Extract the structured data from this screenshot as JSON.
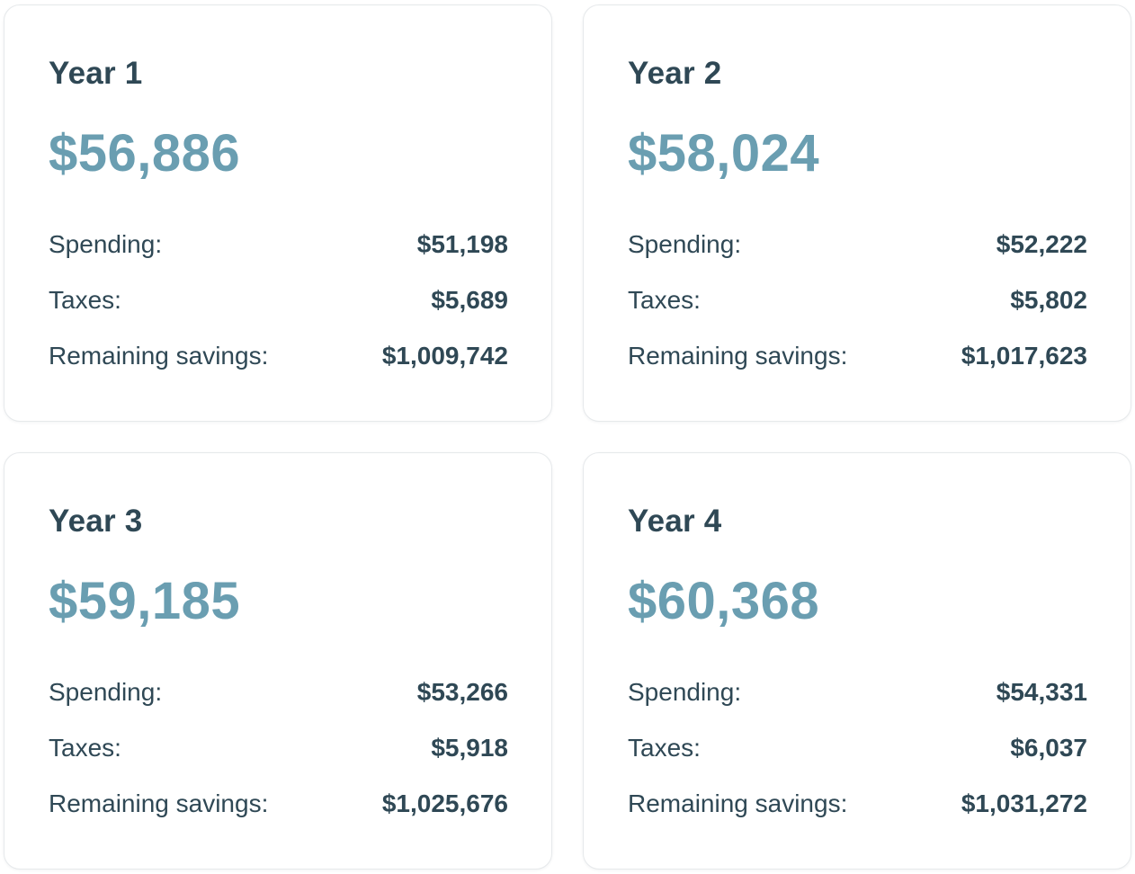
{
  "cards": [
    {
      "year": "Year 1",
      "amount": "$56,886",
      "spending_label": "Spending:",
      "spending": "$51,198",
      "taxes_label": "Taxes:",
      "taxes": "$5,689",
      "savings_label": "Remaining savings:",
      "savings": "$1,009,742"
    },
    {
      "year": "Year 2",
      "amount": "$58,024",
      "spending_label": "Spending:",
      "spending": "$52,222",
      "taxes_label": "Taxes:",
      "taxes": "$5,802",
      "savings_label": "Remaining savings:",
      "savings": "$1,017,623"
    },
    {
      "year": "Year 3",
      "amount": "$59,185",
      "spending_label": "Spending:",
      "spending": "$53,266",
      "taxes_label": "Taxes:",
      "taxes": "$5,918",
      "savings_label": "Remaining savings:",
      "savings": "$1,025,676"
    },
    {
      "year": "Year 4",
      "amount": "$60,368",
      "spending_label": "Spending:",
      "spending": "$54,331",
      "taxes_label": "Taxes:",
      "taxes": "$6,037",
      "savings_label": "Remaining savings:",
      "savings": "$1,031,272"
    }
  ],
  "colors": {
    "heading": "#2f4855",
    "amount": "#6a9eb1",
    "card_border": "#e6e9eb",
    "background": "#ffffff"
  }
}
